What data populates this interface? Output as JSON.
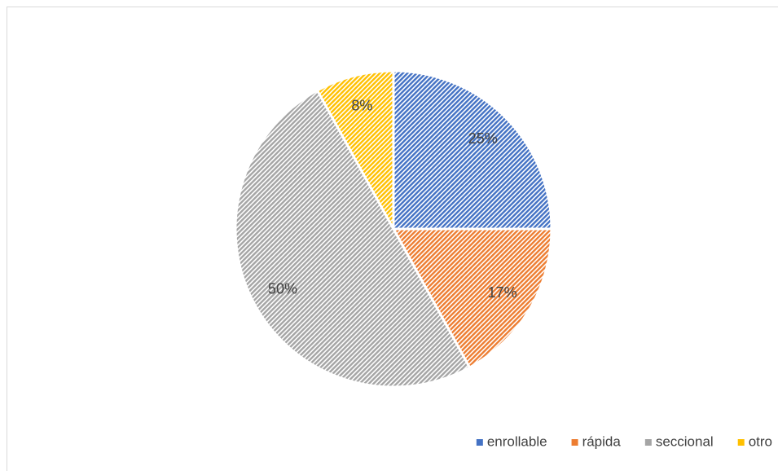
{
  "chart_data": {
    "type": "pie",
    "categories": [
      "enrollable",
      "rápida",
      "seccional",
      "otro"
    ],
    "values": [
      25,
      17,
      50,
      8
    ],
    "value_labels": [
      "25%",
      "17%",
      "50%",
      "8%"
    ],
    "colors": [
      "#4472c4",
      "#ed7d31",
      "#a5a5a5",
      "#ffc000"
    ],
    "legend": "bottom-right"
  }
}
